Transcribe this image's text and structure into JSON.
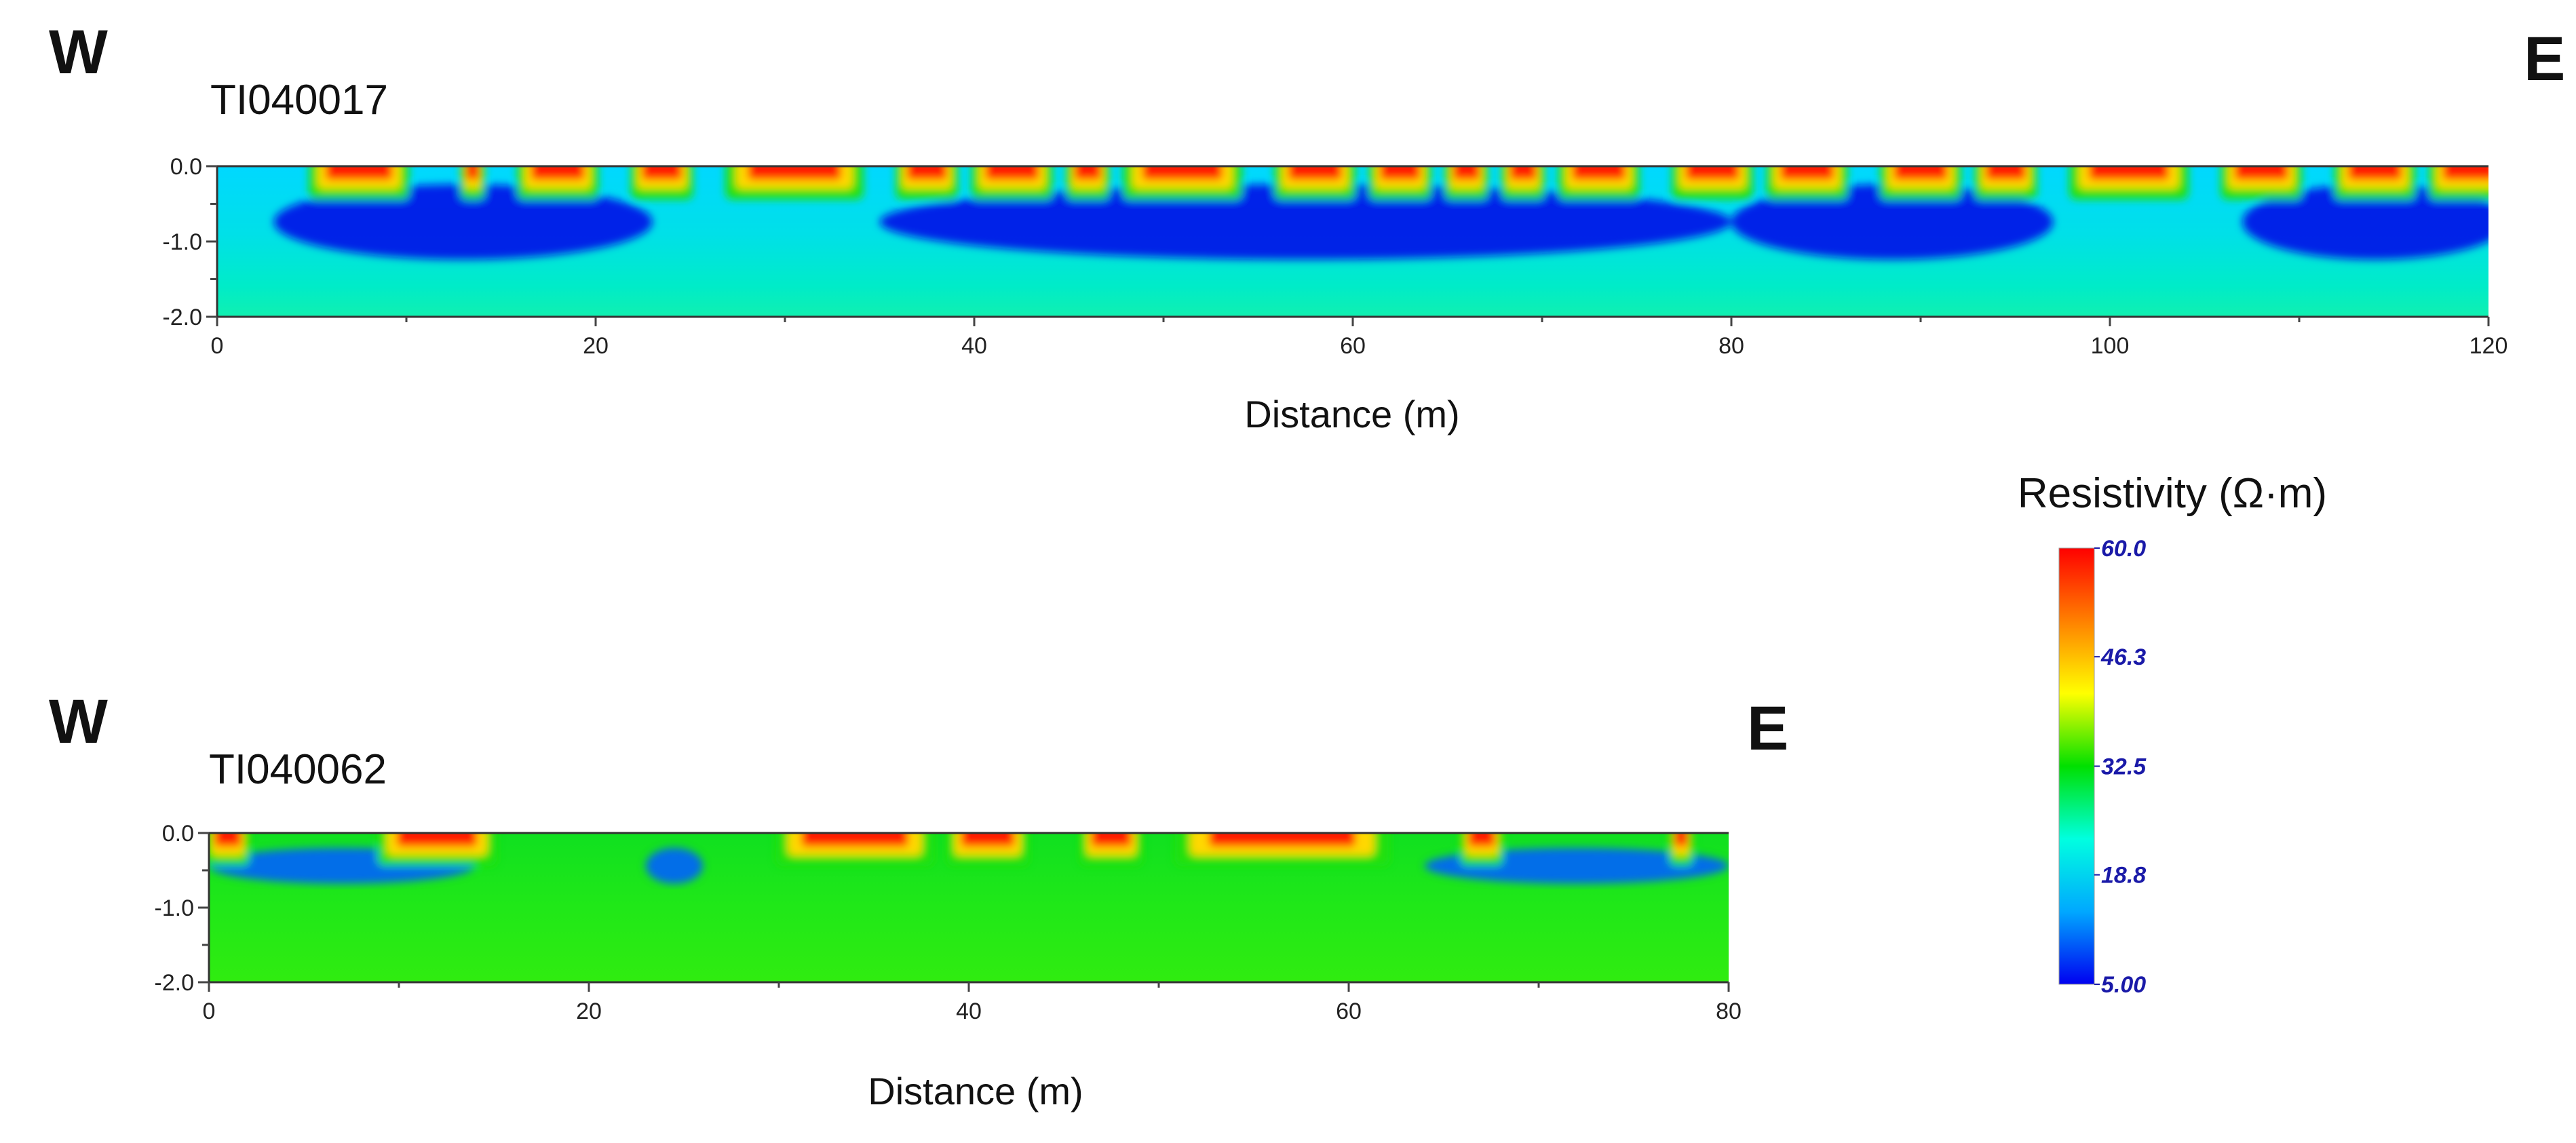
{
  "chart_data": [
    {
      "type": "heatmap",
      "title": "TI040017",
      "xlabel": "Distance (m)",
      "ylabel": "",
      "west_label": "W",
      "east_label": "E",
      "xlim": [
        0,
        120
      ],
      "ylim": [
        -2.0,
        0.0
      ],
      "x_ticks": [
        0,
        20,
        40,
        60,
        80,
        100,
        120
      ],
      "x_tick_labels": [
        "0",
        "20",
        "40",
        "60",
        "80",
        "100",
        "120"
      ],
      "y_ticks": [
        0.0,
        -1.0,
        -2.0
      ],
      "y_tick_labels": [
        "0.0",
        "-1.0",
        "-2.0"
      ],
      "surface_high_resistivity_segments": [
        [
          5,
          10
        ],
        [
          13,
          14
        ],
        [
          16,
          20
        ],
        [
          22,
          25
        ],
        [
          27,
          34
        ],
        [
          36,
          39
        ],
        [
          40,
          44
        ],
        [
          45,
          47
        ],
        [
          48,
          54
        ],
        [
          56,
          60
        ],
        [
          61,
          64
        ],
        [
          65,
          67
        ],
        [
          68,
          70
        ],
        [
          71,
          75
        ],
        [
          77,
          81
        ],
        [
          82,
          86
        ],
        [
          88,
          92
        ],
        [
          93,
          96
        ],
        [
          98,
          104
        ],
        [
          106,
          110
        ],
        [
          112,
          116
        ],
        [
          117,
          121
        ]
      ],
      "low_resistivity_zones": [
        [
          3,
          23
        ],
        [
          35,
          80
        ],
        [
          80,
          97
        ],
        [
          107,
          121
        ]
      ]
    },
    {
      "type": "heatmap",
      "title": "TI040062",
      "xlabel": "Distance (m)",
      "ylabel": "",
      "west_label": "W",
      "east_label": "E",
      "xlim": [
        0,
        80
      ],
      "ylim": [
        -2.0,
        0.0
      ],
      "x_ticks": [
        0,
        20,
        40,
        60,
        80
      ],
      "x_tick_labels": [
        "0",
        "20",
        "40",
        "60",
        "80"
      ],
      "y_ticks": [
        0.0,
        -1.0,
        -2.0
      ],
      "y_tick_labels": [
        "0.0",
        "-1.0",
        "-2.0"
      ],
      "surface_high_resistivity_segments": [
        [
          0,
          2
        ],
        [
          9,
          15
        ],
        [
          30,
          38
        ],
        [
          39,
          43
        ],
        [
          46,
          49
        ],
        [
          51,
          62
        ],
        [
          66,
          68
        ],
        [
          77,
          78
        ]
      ],
      "low_resistivity_zones": [
        [
          0,
          14
        ],
        [
          23,
          26
        ],
        [
          64,
          80
        ]
      ]
    }
  ],
  "colorbar": {
    "title": "Resistivity (Ω·m)",
    "min": 5.0,
    "max": 60.0,
    "tick_values": [
      60.0,
      46.3,
      32.5,
      18.8,
      5.0
    ],
    "tick_labels": [
      "60.0",
      "46.3",
      "32.5",
      "18.8",
      "5.00"
    ],
    "colors": [
      "#0000f0",
      "#00a8ff",
      "#00ffe0",
      "#00e000",
      "#ffff00",
      "#ff8000",
      "#ff0000"
    ]
  }
}
